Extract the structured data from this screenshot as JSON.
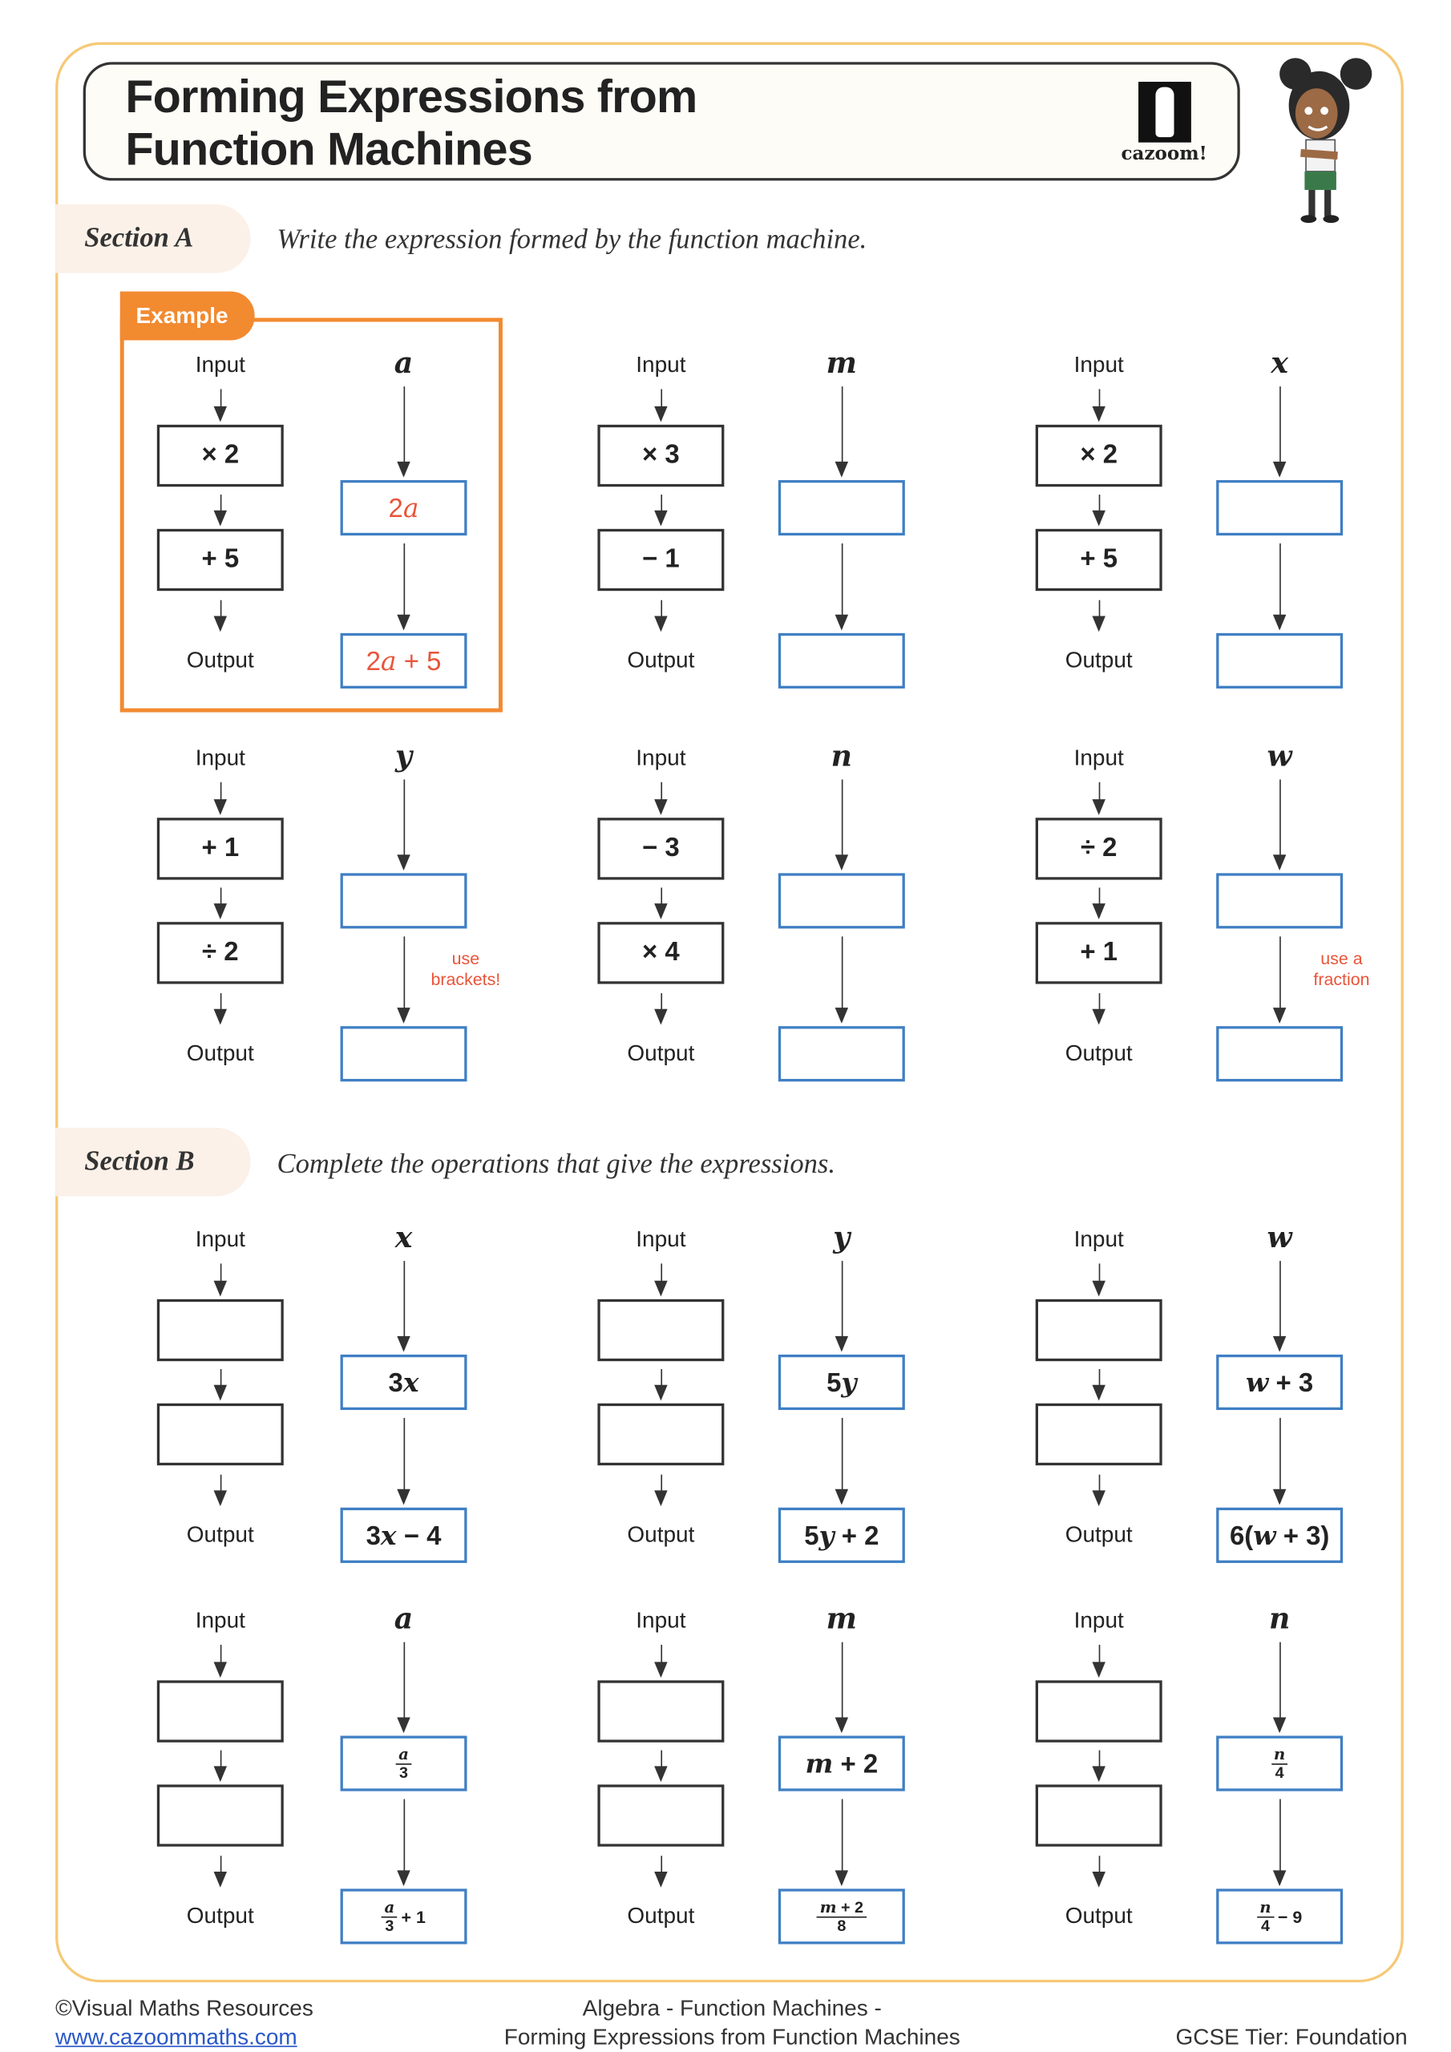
{
  "header": {
    "title_line1": "Forming Expressions from",
    "title_line2": "Function Machines",
    "logo_text": "cazoom!"
  },
  "colors": {
    "accent_orange": "#f28a30",
    "answer_red": "#e8553a",
    "answer_box_blue": "#3f7fc4",
    "border_yellow": "#f6c977"
  },
  "labels": {
    "input": "Input",
    "output": "Output",
    "example": "Example"
  },
  "section_a": {
    "label": "Section A",
    "instruction": "Write the expression formed by the function machine.",
    "machines": [
      {
        "variable": "a",
        "ops": [
          "× 2",
          "+ 5"
        ],
        "answers": [
          "2a",
          "2a + 5"
        ],
        "example": true
      },
      {
        "variable": "m",
        "ops": [
          "× 3",
          "− 1"
        ],
        "answers": [
          "",
          ""
        ]
      },
      {
        "variable": "x",
        "ops": [
          "× 2",
          "+ 5"
        ],
        "answers": [
          "",
          ""
        ]
      },
      {
        "variable": "y",
        "ops": [
          "+ 1",
          "÷ 2"
        ],
        "answers": [
          "",
          ""
        ],
        "hint": [
          "use",
          "brackets!"
        ]
      },
      {
        "variable": "n",
        "ops": [
          "− 3",
          "× 4"
        ],
        "answers": [
          "",
          ""
        ]
      },
      {
        "variable": "w",
        "ops": [
          "÷ 2",
          "+ 1"
        ],
        "answers": [
          "",
          ""
        ],
        "hint": [
          "use a",
          "fraction"
        ]
      }
    ]
  },
  "section_b": {
    "label": "Section B",
    "instruction": "Complete the operations that give the expressions.",
    "machines": [
      {
        "variable": "x",
        "ops": [
          "",
          ""
        ],
        "expressions": [
          {
            "text": "3x"
          },
          {
            "text": "3x − 4"
          }
        ]
      },
      {
        "variable": "y",
        "ops": [
          "",
          ""
        ],
        "expressions": [
          {
            "text": "5y"
          },
          {
            "text": "5y + 2"
          }
        ]
      },
      {
        "variable": "w",
        "ops": [
          "",
          ""
        ],
        "expressions": [
          {
            "text": "w + 3"
          },
          {
            "text": "6(w + 3)"
          }
        ]
      },
      {
        "variable": "a",
        "ops": [
          "",
          ""
        ],
        "expressions": [
          {
            "num": "a",
            "den": "3",
            "tail": ""
          },
          {
            "num": "a",
            "den": "3",
            "tail": "+ 1"
          }
        ]
      },
      {
        "variable": "m",
        "ops": [
          "",
          ""
        ],
        "expressions": [
          {
            "text": "m + 2"
          },
          {
            "num": "m + 2",
            "den": "8",
            "tail": ""
          }
        ]
      },
      {
        "variable": "n",
        "ops": [
          "",
          ""
        ],
        "expressions": [
          {
            "num": "n",
            "den": "4",
            "tail": ""
          },
          {
            "num": "n",
            "den": "4",
            "tail": "− 9"
          }
        ]
      }
    ]
  },
  "footer": {
    "copyright": "©Visual Maths Resources",
    "website": "www.cazoommaths.com",
    "topic_line1": "Algebra - Function Machines -",
    "topic_line2": "Forming Expressions from Function Machines",
    "tier": "GCSE Tier: Foundation"
  }
}
